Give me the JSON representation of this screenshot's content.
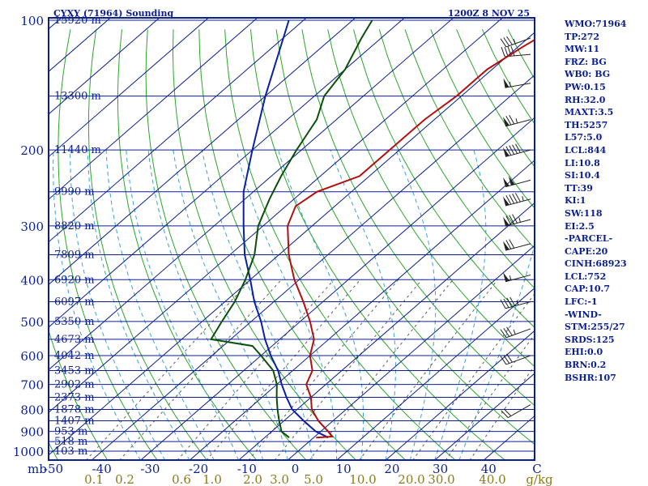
{
  "header": {
    "station": "CYXY (71964) Sounding",
    "time": "1200Z  8 NOV 25"
  },
  "indices": [
    "WMO:71964",
    "TP:272",
    "MW:11",
    "FRZ: BG",
    "WB0: BG",
    "PW:0.15",
    "RH:32.0",
    "MAXT:3.5",
    "TH:5257",
    "L57:5.0",
    "LCL:844",
    "LI:10.8",
    "SI:10.4",
    "TT:39",
    "KI:1",
    "SW:118",
    "EI:2.5",
    "-PARCEL-",
    "CAPE:20",
    "CINH:68923",
    "LCL:752",
    "CAP:10.7",
    "LFC:-1",
    "-WIND-",
    "STM:255/27",
    "SRDS:125",
    "EHI:0.0",
    "BRN:0.2",
    "BSHR:107"
  ],
  "colors": {
    "frame": "#0b1f8f",
    "isobar": "#0b1f8f",
    "isotherm": "#0b1f8f",
    "dry_adiabat": "#2aa52a",
    "moist_adiabat": "#3aa0d8",
    "mixing_ratio": "#5a5a5a",
    "temperature": "#b01010",
    "dewpoint": "#0b4f0b",
    "parcel": "#0a1ea8",
    "wind_barb": "#222222",
    "mixing_label": "#8b7a1a"
  },
  "chart_data": {
    "type": "skew-t",
    "xlabel": "C",
    "x_units_mixing": "g/kg",
    "y_axis_label": "mb",
    "pressure_levels": [
      100,
      200,
      300,
      400,
      500,
      600,
      700,
      800,
      900,
      1000
    ],
    "temperature_ticks": [
      "-50",
      "-40",
      "-30",
      "-20",
      "-10",
      "0",
      "10",
      "20",
      "30",
      "40",
      "C"
    ],
    "mixing_ratio_ticks": [
      "0.1",
      "0.2",
      "0.6",
      "1.0",
      "2.0",
      "3.0",
      "5.0",
      "10.0",
      "20.0",
      "30.0",
      "40.0",
      "g/kg"
    ],
    "height_labels": [
      {
        "pressure": 100,
        "label": "15920 m"
      },
      {
        "pressure": 150,
        "label": "13300 m"
      },
      {
        "pressure": 200,
        "label": "11440 m"
      },
      {
        "pressure": 250,
        "label": "9990 m"
      },
      {
        "pressure": 300,
        "label": "8820 m"
      },
      {
        "pressure": 350,
        "label": "7809 m"
      },
      {
        "pressure": 400,
        "label": "6920 m"
      },
      {
        "pressure": 450,
        "label": "6097 m"
      },
      {
        "pressure": 500,
        "label": "5350 m"
      },
      {
        "pressure": 550,
        "label": "4673 m"
      },
      {
        "pressure": 600,
        "label": "4042 m"
      },
      {
        "pressure": 650,
        "label": "3453 m"
      },
      {
        "pressure": 700,
        "label": "2902 m"
      },
      {
        "pressure": 750,
        "label": "2373 m"
      },
      {
        "pressure": 800,
        "label": "1878 m"
      },
      {
        "pressure": 850,
        "label": "1407 m"
      },
      {
        "pressure": 900,
        "label": "953 m"
      },
      {
        "pressure": 950,
        "label": "518 m"
      },
      {
        "pressure": 1000,
        "label": "103 m"
      }
    ],
    "temperature": [
      {
        "p": 930,
        "t": 0.5
      },
      {
        "p": 925,
        "t": 3.5
      },
      {
        "p": 900,
        "t": 1.5
      },
      {
        "p": 850,
        "t": -3
      },
      {
        "p": 800,
        "t": -7
      },
      {
        "p": 750,
        "t": -10
      },
      {
        "p": 700,
        "t": -14
      },
      {
        "p": 650,
        "t": -16
      },
      {
        "p": 600,
        "t": -20
      },
      {
        "p": 550,
        "t": -23
      },
      {
        "p": 500,
        "t": -28
      },
      {
        "p": 450,
        "t": -34
      },
      {
        "p": 400,
        "t": -41
      },
      {
        "p": 350,
        "t": -48
      },
      {
        "p": 300,
        "t": -55
      },
      {
        "p": 270,
        "t": -58
      },
      {
        "p": 250,
        "t": -57
      },
      {
        "p": 230,
        "t": -52
      },
      {
        "p": 210,
        "t": -52
      },
      {
        "p": 190,
        "t": -52
      },
      {
        "p": 170,
        "t": -52
      },
      {
        "p": 150,
        "t": -51
      },
      {
        "p": 130,
        "t": -51
      },
      {
        "p": 115,
        "t": -49
      },
      {
        "p": 100,
        "t": -46
      }
    ],
    "dewpoint": [
      {
        "p": 930,
        "t": -5
      },
      {
        "p": 900,
        "t": -8
      },
      {
        "p": 850,
        "t": -11
      },
      {
        "p": 800,
        "t": -14
      },
      {
        "p": 750,
        "t": -17
      },
      {
        "p": 700,
        "t": -20
      },
      {
        "p": 650,
        "t": -24
      },
      {
        "p": 600,
        "t": -30
      },
      {
        "p": 570,
        "t": -34
      },
      {
        "p": 550,
        "t": -44
      },
      {
        "p": 500,
        "t": -46
      },
      {
        "p": 450,
        "t": -48
      },
      {
        "p": 400,
        "t": -51
      },
      {
        "p": 350,
        "t": -55
      },
      {
        "p": 300,
        "t": -61
      },
      {
        "p": 260,
        "t": -65
      },
      {
        "p": 230,
        "t": -68
      },
      {
        "p": 200,
        "t": -71
      },
      {
        "p": 170,
        "t": -74
      },
      {
        "p": 150,
        "t": -78
      },
      {
        "p": 130,
        "t": -80
      },
      {
        "p": 110,
        "t": -84
      },
      {
        "p": 100,
        "t": -86
      }
    ],
    "parcel": [
      {
        "p": 930,
        "t": 3
      },
      {
        "p": 900,
        "t": -1
      },
      {
        "p": 850,
        "t": -6
      },
      {
        "p": 800,
        "t": -11
      },
      {
        "p": 750,
        "t": -15
      },
      {
        "p": 700,
        "t": -19
      },
      {
        "p": 650,
        "t": -23
      },
      {
        "p": 600,
        "t": -28
      },
      {
        "p": 550,
        "t": -33
      },
      {
        "p": 500,
        "t": -38
      },
      {
        "p": 450,
        "t": -44
      },
      {
        "p": 400,
        "t": -50
      },
      {
        "p": 350,
        "t": -57
      },
      {
        "p": 300,
        "t": -64
      },
      {
        "p": 250,
        "t": -72
      },
      {
        "p": 200,
        "t": -80
      },
      {
        "p": 150,
        "t": -90
      },
      {
        "p": 100,
        "t": -103
      }
    ],
    "wind_barbs": [
      {
        "p": 110,
        "dir": 250,
        "spd": 35
      },
      {
        "p": 120,
        "dir": 265,
        "spd": 40
      },
      {
        "p": 140,
        "dir": 260,
        "spd": 55
      },
      {
        "p": 170,
        "dir": 255,
        "spd": 75
      },
      {
        "p": 200,
        "dir": 255,
        "spd": 90
      },
      {
        "p": 235,
        "dir": 255,
        "spd": 100
      },
      {
        "p": 260,
        "dir": 255,
        "spd": 95
      },
      {
        "p": 290,
        "dir": 255,
        "spd": 85
      },
      {
        "p": 330,
        "dir": 255,
        "spd": 70
      },
      {
        "p": 390,
        "dir": 255,
        "spd": 55
      },
      {
        "p": 450,
        "dir": 255,
        "spd": 45
      },
      {
        "p": 520,
        "dir": 250,
        "spd": 35
      },
      {
        "p": 600,
        "dir": 250,
        "spd": 30
      },
      {
        "p": 780,
        "dir": 240,
        "spd": 20
      }
    ]
  }
}
